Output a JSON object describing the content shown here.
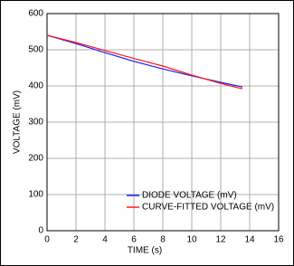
{
  "chart_data": {
    "type": "line",
    "x_label": "TIME (s)",
    "y_label": "VOLTAGE (mV)",
    "x": [
      0,
      2,
      4,
      6,
      8,
      10,
      12,
      13.5
    ],
    "series": [
      {
        "name": "DIODE VOLTAGE (mV)",
        "color": "#1a1aff",
        "values": [
          540,
          517,
          492,
          468,
          447,
          428,
          410,
          397
        ]
      },
      {
        "name": "CURVE-FITTED VOLTAGE (mV)",
        "color": "#ff1a1a",
        "values": [
          540,
          520,
          498,
          476,
          455,
          430,
          407,
          392
        ]
      }
    ],
    "xlim": [
      0,
      16
    ],
    "xticks": [
      0,
      2,
      4,
      6,
      8,
      10,
      12,
      14,
      16
    ],
    "ylim": [
      0,
      600
    ],
    "yticks": [
      0,
      100,
      200,
      300,
      400,
      500,
      600
    ],
    "grid": true,
    "legend": "lower-right"
  }
}
